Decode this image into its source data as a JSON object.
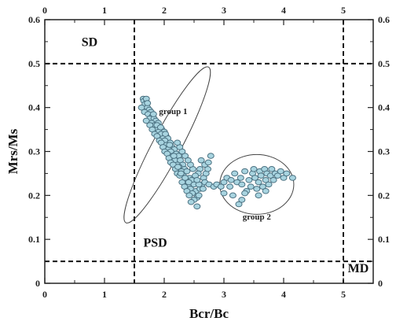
{
  "chart_data": {
    "type": "scatter",
    "xlabel": "Bcr/Bc",
    "ylabel": "Mrs/Ms",
    "xlim": [
      0,
      5.5
    ],
    "ylim": [
      0,
      0.6
    ],
    "x_ticks": [
      "0",
      "1",
      "2",
      "3",
      "4",
      "5"
    ],
    "y_ticks": [
      "0",
      "0.1",
      "0.2",
      "0.3",
      "0.4",
      "0.5",
      "0.6"
    ],
    "grid": false,
    "secondary_axes": "mirrored ticks on top and right",
    "boundaries": [
      {
        "orientation": "vertical",
        "value": 1.5
      },
      {
        "orientation": "vertical",
        "value": 5.0
      },
      {
        "orientation": "horizontal",
        "value": 0.5
      },
      {
        "orientation": "horizontal",
        "value": 0.05
      }
    ],
    "regions": [
      {
        "label": "SD",
        "x": 0.75,
        "y": 0.54
      },
      {
        "label": "PSD",
        "x": 1.85,
        "y": 0.083
      },
      {
        "label": "MD",
        "x": 5.25,
        "y": 0.025
      }
    ],
    "groups": [
      {
        "label": "group 1",
        "label_x": 2.15,
        "label_y": 0.385,
        "center": [
          2.05,
          0.315
        ],
        "semi_axes": [
          0.9,
          0.05
        ],
        "rotation_deg": -62
      },
      {
        "label": "group 2",
        "label_x": 3.55,
        "label_y": 0.145,
        "center": [
          3.55,
          0.225
        ],
        "semi_axes": [
          0.62,
          0.068
        ],
        "rotation_deg": 0
      }
    ],
    "points_1": [
      [
        1.65,
        0.42
      ],
      [
        1.66,
        0.415
      ],
      [
        1.68,
        0.408
      ],
      [
        1.7,
        0.42
      ],
      [
        1.62,
        0.4
      ],
      [
        1.72,
        0.4
      ],
      [
        1.75,
        0.395
      ],
      [
        1.67,
        0.39
      ],
      [
        1.78,
        0.39
      ],
      [
        1.73,
        0.385
      ],
      [
        1.8,
        0.38
      ],
      [
        1.76,
        0.375
      ],
      [
        1.83,
        0.375
      ],
      [
        1.7,
        0.37
      ],
      [
        1.86,
        0.37
      ],
      [
        1.79,
        0.365
      ],
      [
        1.9,
        0.365
      ],
      [
        1.84,
        0.36
      ],
      [
        1.76,
        0.36
      ],
      [
        1.93,
        0.355
      ],
      [
        1.87,
        0.35
      ],
      [
        1.8,
        0.35
      ],
      [
        1.96,
        0.35
      ],
      [
        1.91,
        0.345
      ],
      [
        1.84,
        0.34
      ],
      [
        2.0,
        0.345
      ],
      [
        1.95,
        0.34
      ],
      [
        1.88,
        0.335
      ],
      [
        2.03,
        0.335
      ],
      [
        1.98,
        0.33
      ],
      [
        1.92,
        0.325
      ],
      [
        2.06,
        0.33
      ],
      [
        2.01,
        0.325
      ],
      [
        1.95,
        0.32
      ],
      [
        2.1,
        0.32
      ],
      [
        2.04,
        0.315
      ],
      [
        1.98,
        0.31
      ],
      [
        2.13,
        0.31
      ],
      [
        2.07,
        0.305
      ],
      [
        2.01,
        0.3
      ],
      [
        2.17,
        0.305
      ],
      [
        2.11,
        0.3
      ],
      [
        2.05,
        0.295
      ],
      [
        2.2,
        0.295
      ],
      [
        2.14,
        0.29
      ],
      [
        2.08,
        0.285
      ],
      [
        2.24,
        0.29
      ],
      [
        2.18,
        0.28
      ],
      [
        2.11,
        0.275
      ],
      [
        2.27,
        0.28
      ],
      [
        2.22,
        0.27
      ],
      [
        2.15,
        0.27
      ],
      [
        2.31,
        0.27
      ],
      [
        2.25,
        0.265
      ],
      [
        2.19,
        0.26
      ],
      [
        2.34,
        0.26
      ],
      [
        2.29,
        0.255
      ],
      [
        2.22,
        0.25
      ],
      [
        2.38,
        0.255
      ],
      [
        2.32,
        0.245
      ],
      [
        2.26,
        0.245
      ],
      [
        2.42,
        0.24
      ],
      [
        2.36,
        0.235
      ],
      [
        2.3,
        0.23
      ],
      [
        2.46,
        0.235
      ],
      [
        2.4,
        0.225
      ],
      [
        2.34,
        0.22
      ],
      [
        2.5,
        0.225
      ],
      [
        2.44,
        0.215
      ],
      [
        2.38,
        0.21
      ],
      [
        2.53,
        0.21
      ],
      [
        2.47,
        0.205
      ],
      [
        2.42,
        0.2
      ],
      [
        2.55,
        0.195
      ],
      [
        2.5,
        0.19
      ],
      [
        2.45,
        0.185
      ],
      [
        2.55,
        0.175
      ],
      [
        2.58,
        0.2
      ],
      [
        2.6,
        0.215
      ],
      [
        2.63,
        0.225
      ],
      [
        2.66,
        0.24
      ],
      [
        2.7,
        0.25
      ],
      [
        2.73,
        0.26
      ],
      [
        2.68,
        0.27
      ],
      [
        2.62,
        0.28
      ],
      [
        2.74,
        0.275
      ],
      [
        2.78,
        0.29
      ],
      [
        2.6,
        0.26
      ],
      [
        2.57,
        0.25
      ],
      [
        2.52,
        0.245
      ],
      [
        2.48,
        0.26
      ],
      [
        2.44,
        0.27
      ],
      [
        2.4,
        0.28
      ],
      [
        2.35,
        0.29
      ],
      [
        2.3,
        0.3
      ],
      [
        2.26,
        0.31
      ],
      [
        2.22,
        0.32
      ],
      [
        1.72,
        0.41
      ],
      [
        1.82,
        0.385
      ],
      [
        1.88,
        0.36
      ],
      [
        1.94,
        0.355
      ],
      [
        2.02,
        0.34
      ],
      [
        2.09,
        0.315
      ],
      [
        2.16,
        0.29
      ],
      [
        2.23,
        0.265
      ],
      [
        2.28,
        0.25
      ],
      [
        2.35,
        0.24
      ],
      [
        2.41,
        0.23
      ],
      [
        2.58,
        0.225
      ],
      [
        2.68,
        0.23
      ],
      [
        2.75,
        0.225
      ],
      [
        2.83,
        0.22
      ],
      [
        2.55,
        0.235
      ],
      [
        2.65,
        0.215
      ]
    ],
    "points_2": [
      [
        2.88,
        0.225
      ],
      [
        2.95,
        0.22
      ],
      [
        3.0,
        0.23
      ],
      [
        3.05,
        0.24
      ],
      [
        3.1,
        0.22
      ],
      [
        3.12,
        0.235
      ],
      [
        3.18,
        0.25
      ],
      [
        3.22,
        0.23
      ],
      [
        3.28,
        0.24
      ],
      [
        3.3,
        0.225
      ],
      [
        3.35,
        0.255
      ],
      [
        3.38,
        0.21
      ],
      [
        3.42,
        0.235
      ],
      [
        3.45,
        0.22
      ],
      [
        3.48,
        0.25
      ],
      [
        3.5,
        0.26
      ],
      [
        3.52,
        0.24
      ],
      [
        3.55,
        0.215
      ],
      [
        3.58,
        0.23
      ],
      [
        3.6,
        0.255
      ],
      [
        3.62,
        0.245
      ],
      [
        3.65,
        0.22
      ],
      [
        3.68,
        0.26
      ],
      [
        3.7,
        0.235
      ],
      [
        3.72,
        0.25
      ],
      [
        3.75,
        0.225
      ],
      [
        3.78,
        0.245
      ],
      [
        3.8,
        0.26
      ],
      [
        3.83,
        0.235
      ],
      [
        3.86,
        0.25
      ],
      [
        3.9,
        0.245
      ],
      [
        3.95,
        0.255
      ],
      [
        4.0,
        0.24
      ],
      [
        4.05,
        0.25
      ],
      [
        4.15,
        0.24
      ],
      [
        3.25,
        0.18
      ],
      [
        3.3,
        0.19
      ],
      [
        3.15,
        0.2
      ],
      [
        3.0,
        0.205
      ],
      [
        3.35,
        0.205
      ],
      [
        3.58,
        0.2
      ],
      [
        3.7,
        0.21
      ]
    ]
  }
}
